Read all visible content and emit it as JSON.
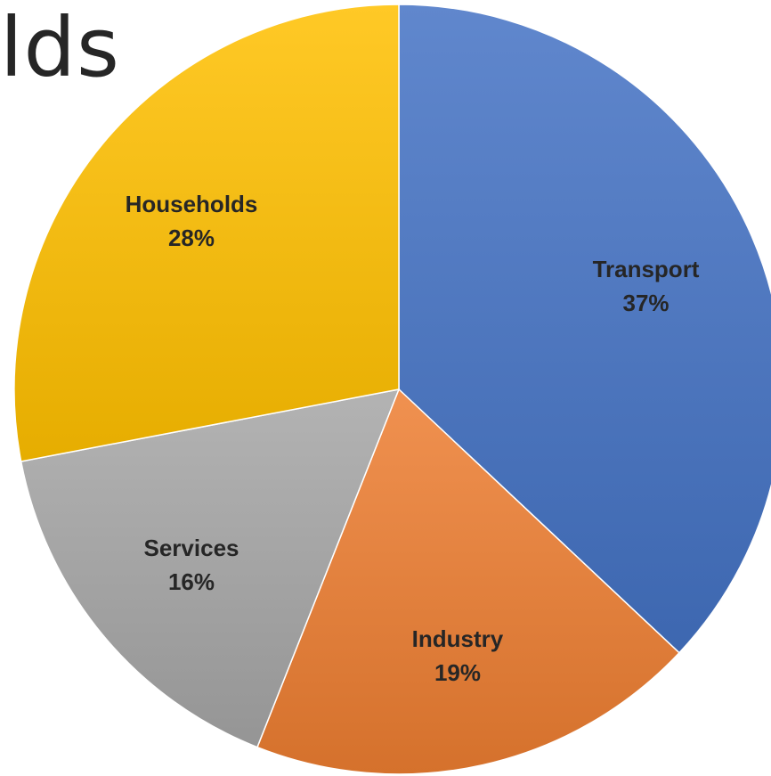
{
  "title_fragment": "lds",
  "chart_data": {
    "type": "pie",
    "title": "",
    "slices": [
      {
        "label": "Transport",
        "value": 37,
        "value_label": "37%",
        "color": "#4472C4"
      },
      {
        "label": "Industry",
        "value": 19,
        "value_label": "19%",
        "color": "#ED7D31"
      },
      {
        "label": "Services",
        "value": 16,
        "value_label": "16%",
        "color": "#A5A5A5"
      },
      {
        "label": "Households",
        "value": 28,
        "value_label": "28%",
        "color": "#FFC000"
      }
    ],
    "start_angle_deg": 0,
    "direction": "clockwise",
    "legend": "none",
    "data_labels": "category-and-percent"
  }
}
